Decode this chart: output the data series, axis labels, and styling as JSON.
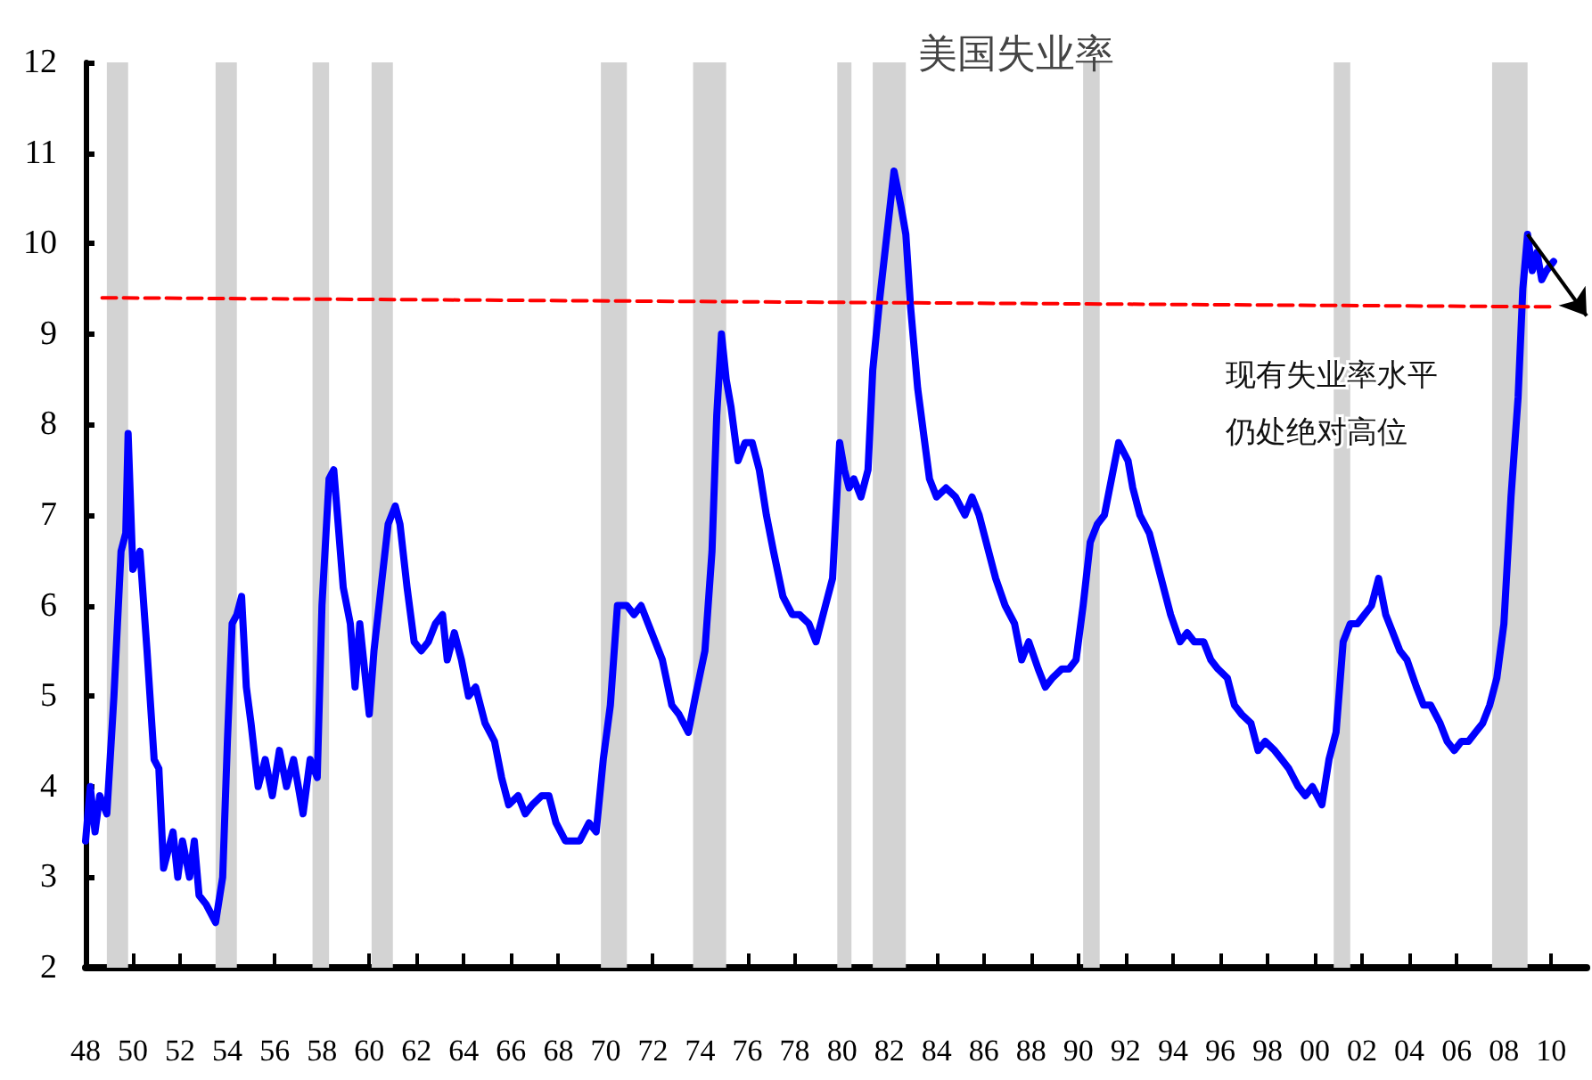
{
  "chart_data": {
    "type": "line",
    "title": "美国失业率",
    "annotations": [
      "现有失业率水平",
      "仍处绝对高位"
    ],
    "xlim": [
      1948,
      2011.5
    ],
    "xticks": [
      {
        "value": 1948,
        "label": "48"
      },
      {
        "value": 1950,
        "label": "50"
      },
      {
        "value": 1952,
        "label": "52"
      },
      {
        "value": 1954,
        "label": "54"
      },
      {
        "value": 1956,
        "label": "56"
      },
      {
        "value": 1958,
        "label": "58"
      },
      {
        "value": 1960,
        "label": "60"
      },
      {
        "value": 1962,
        "label": "62"
      },
      {
        "value": 1964,
        "label": "64"
      },
      {
        "value": 1966,
        "label": "66"
      },
      {
        "value": 1968,
        "label": "68"
      },
      {
        "value": 1970,
        "label": "70"
      },
      {
        "value": 1972,
        "label": "72"
      },
      {
        "value": 1974,
        "label": "74"
      },
      {
        "value": 1976,
        "label": "76"
      },
      {
        "value": 1978,
        "label": "78"
      },
      {
        "value": 1980,
        "label": "80"
      },
      {
        "value": 1982,
        "label": "82"
      },
      {
        "value": 1984,
        "label": "84"
      },
      {
        "value": 1986,
        "label": "86"
      },
      {
        "value": 1988,
        "label": "88"
      },
      {
        "value": 1990,
        "label": "90"
      },
      {
        "value": 1992,
        "label": "92"
      },
      {
        "value": 1994,
        "label": "94"
      },
      {
        "value": 1996,
        "label": "96"
      },
      {
        "value": 1998,
        "label": "98"
      },
      {
        "value": 2000,
        "label": "00"
      },
      {
        "value": 2002,
        "label": "02"
      },
      {
        "value": 2004,
        "label": "04"
      },
      {
        "value": 2006,
        "label": "06"
      },
      {
        "value": 2008,
        "label": "08"
      },
      {
        "value": 2010,
        "label": "10"
      }
    ],
    "ylim": [
      2,
      12
    ],
    "yticks": [
      2,
      3,
      4,
      5,
      6,
      7,
      8,
      9,
      10,
      11,
      12
    ],
    "grid": false,
    "marker": "none",
    "series": [
      {
        "color": "#0000ff",
        "line_style": "solid",
        "x": [
          1948.0,
          1948.2,
          1948.4,
          1948.6,
          1948.9,
          1949.2,
          1949.5,
          1949.7,
          1949.8,
          1950.0,
          1950.3,
          1950.6,
          1950.9,
          1951.1,
          1951.3,
          1951.7,
          1951.9,
          1952.1,
          1952.4,
          1952.6,
          1952.8,
          1953.1,
          1953.5,
          1953.8,
          1954.0,
          1954.2,
          1954.4,
          1954.6,
          1954.8,
          1955.0,
          1955.3,
          1955.6,
          1955.9,
          1956.2,
          1956.5,
          1956.8,
          1957.2,
          1957.5,
          1957.8,
          1958.0,
          1958.3,
          1958.5,
          1958.9,
          1959.2,
          1959.4,
          1959.6,
          1959.8,
          1960.0,
          1960.2,
          1960.5,
          1960.8,
          1961.1,
          1961.3,
          1961.6,
          1961.9,
          1962.2,
          1962.5,
          1962.8,
          1963.1,
          1963.3,
          1963.6,
          1963.9,
          1964.2,
          1964.5,
          1964.9,
          1965.3,
          1965.6,
          1965.9,
          1966.3,
          1966.6,
          1966.9,
          1967.3,
          1967.6,
          1967.9,
          1968.3,
          1968.6,
          1968.9,
          1969.3,
          1969.6,
          1969.9,
          1970.2,
          1970.5,
          1970.9,
          1971.2,
          1971.5,
          1971.8,
          1972.1,
          1972.4,
          1972.8,
          1973.1,
          1973.5,
          1973.8,
          1974.2,
          1974.5,
          1974.7,
          1974.9,
          1975.1,
          1975.3,
          1975.6,
          1975.9,
          1976.2,
          1976.5,
          1976.8,
          1977.1,
          1977.5,
          1977.9,
          1978.2,
          1978.6,
          1978.9,
          1979.3,
          1979.6,
          1979.9,
          1980.1,
          1980.3,
          1980.5,
          1980.8,
          1981.1,
          1981.3,
          1981.6,
          1981.9,
          1982.2,
          1982.5,
          1982.7,
          1982.9,
          1983.2,
          1983.5,
          1983.7,
          1984.0,
          1984.4,
          1984.8,
          1985.2,
          1985.5,
          1985.8,
          1986.2,
          1986.5,
          1986.9,
          1987.3,
          1987.6,
          1987.9,
          1988.3,
          1988.6,
          1988.9,
          1989.3,
          1989.6,
          1989.9,
          1990.2,
          1990.5,
          1990.8,
          1991.1,
          1991.4,
          1991.7,
          1992.1,
          1992.3,
          1992.6,
          1993.0,
          1993.3,
          1993.6,
          1993.9,
          1994.3,
          1994.6,
          1994.9,
          1995.3,
          1995.6,
          1995.9,
          1996.3,
          1996.6,
          1996.9,
          1997.3,
          1997.6,
          1997.9,
          1998.3,
          1998.6,
          1998.9,
          1999.3,
          1999.6,
          1999.9,
          2000.3,
          2000.6,
          2000.9,
          2001.2,
          2001.5,
          2001.8,
          2002.1,
          2002.4,
          2002.7,
          2003.0,
          2003.3,
          2003.6,
          2003.9,
          2004.3,
          2004.6,
          2004.9,
          2005.3,
          2005.6,
          2005.9,
          2006.2,
          2006.5,
          2006.8,
          2007.1,
          2007.4,
          2007.7,
          2008.0,
          2008.3,
          2008.6,
          2008.8,
          2009.0,
          2009.2,
          2009.4,
          2009.6,
          2009.8,
          2010.1
        ],
        "values": [
          3.4,
          4.0,
          3.5,
          3.9,
          3.7,
          5.0,
          6.6,
          6.8,
          7.9,
          6.4,
          6.6,
          5.5,
          4.3,
          4.2,
          3.1,
          3.5,
          3.0,
          3.4,
          3.0,
          3.4,
          2.8,
          2.7,
          2.5,
          3.0,
          4.5,
          5.8,
          5.9,
          6.1,
          5.1,
          4.7,
          4.0,
          4.3,
          3.9,
          4.4,
          4.0,
          4.3,
          3.7,
          4.3,
          4.1,
          6.0,
          7.4,
          7.5,
          6.2,
          5.8,
          5.1,
          5.8,
          5.3,
          4.8,
          5.5,
          6.2,
          6.9,
          7.1,
          6.9,
          6.2,
          5.6,
          5.5,
          5.6,
          5.8,
          5.9,
          5.4,
          5.7,
          5.4,
          5.0,
          5.1,
          4.7,
          4.5,
          4.1,
          3.8,
          3.9,
          3.7,
          3.8,
          3.9,
          3.9,
          3.6,
          3.4,
          3.4,
          3.4,
          3.6,
          3.5,
          4.3,
          4.9,
          6.0,
          6.0,
          5.9,
          6.0,
          5.8,
          5.6,
          5.4,
          4.9,
          4.8,
          4.6,
          5.0,
          5.5,
          6.6,
          8.1,
          9.0,
          8.5,
          8.2,
          7.6,
          7.8,
          7.8,
          7.5,
          7.0,
          6.6,
          6.1,
          5.9,
          5.9,
          5.8,
          5.6,
          6.0,
          6.3,
          7.8,
          7.5,
          7.3,
          7.4,
          7.2,
          7.5,
          8.6,
          9.4,
          10.1,
          10.8,
          10.4,
          10.1,
          9.3,
          8.4,
          7.8,
          7.4,
          7.2,
          7.3,
          7.2,
          7.0,
          7.2,
          7.0,
          6.6,
          6.3,
          6.0,
          5.8,
          5.4,
          5.6,
          5.3,
          5.1,
          5.2,
          5.3,
          5.3,
          5.4,
          6.0,
          6.7,
          6.9,
          7.0,
          7.4,
          7.8,
          7.6,
          7.3,
          7.0,
          6.8,
          6.5,
          6.2,
          5.9,
          5.6,
          5.7,
          5.6,
          5.6,
          5.4,
          5.3,
          5.2,
          4.9,
          4.8,
          4.7,
          4.4,
          4.5,
          4.4,
          4.3,
          4.2,
          4.0,
          3.9,
          4.0,
          3.8,
          4.3,
          4.6,
          5.6,
          5.8,
          5.8,
          5.9,
          6.0,
          6.3,
          5.9,
          5.7,
          5.5,
          5.4,
          5.1,
          4.9,
          4.9,
          4.7,
          4.5,
          4.4,
          4.5,
          4.5,
          4.6,
          4.7,
          4.9,
          5.2,
          5.8,
          7.2,
          8.3,
          9.5,
          10.1,
          9.7,
          9.9,
          9.6,
          9.7,
          9.8
        ]
      },
      {
        "color": "#ff0000",
        "line_style": "dashed",
        "x": [
          1948.7,
          2010.1
        ],
        "values": [
          9.4,
          9.3
        ]
      }
    ],
    "bands": [
      {
        "axis": "x",
        "from": 1948.9,
        "to": 1949.8,
        "color": "#d3d3d3"
      },
      {
        "axis": "x",
        "from": 1953.5,
        "to": 1954.4,
        "color": "#d3d3d3"
      },
      {
        "axis": "x",
        "from": 1957.6,
        "to": 1958.3,
        "color": "#d3d3d3"
      },
      {
        "axis": "x",
        "from": 1960.1,
        "to": 1961.0,
        "color": "#d3d3d3"
      },
      {
        "axis": "x",
        "from": 1969.8,
        "to": 1970.9,
        "color": "#d3d3d3"
      },
      {
        "axis": "x",
        "from": 1973.7,
        "to": 1975.1,
        "color": "#d3d3d3"
      },
      {
        "axis": "x",
        "from": 1979.8,
        "to": 1980.4,
        "color": "#d3d3d3"
      },
      {
        "axis": "x",
        "from": 1981.3,
        "to": 1982.7,
        "color": "#d3d3d3"
      },
      {
        "axis": "x",
        "from": 1990.2,
        "to": 1990.9,
        "color": "#d3d3d3"
      },
      {
        "axis": "x",
        "from": 2000.8,
        "to": 2001.5,
        "color": "#d3d3d3"
      },
      {
        "axis": "x",
        "from": 2007.5,
        "to": 2009.0,
        "color": "#d3d3d3"
      }
    ]
  }
}
